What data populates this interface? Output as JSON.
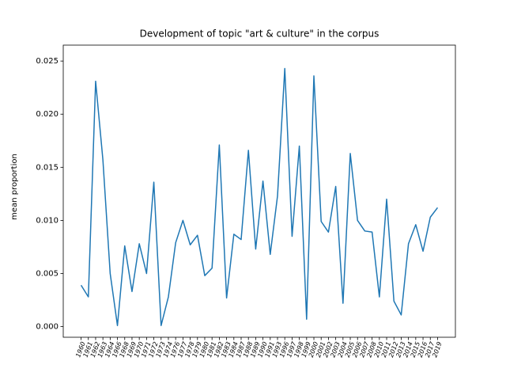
{
  "chart_data": {
    "type": "line",
    "title": "Development of topic \"art & culture\" in the corpus",
    "ylabel": "mean proportion",
    "categories": [
      "1960",
      "1961",
      "1962",
      "1963",
      "1964",
      "1966",
      "1968",
      "1969",
      "1970",
      "1971",
      "1972",
      "1973",
      "1974",
      "1976",
      "1977",
      "1978",
      "1979",
      "1980",
      "1981",
      "1982",
      "1983",
      "1984",
      "1987",
      "1988",
      "1989",
      "1990",
      "1991",
      "1993",
      "1996",
      "1997",
      "1998",
      "1999",
      "2000",
      "2001",
      "2002",
      "2003",
      "2004",
      "2005",
      "2006",
      "2007",
      "2008",
      "2010",
      "2011",
      "2012",
      "2013",
      "2014",
      "2015",
      "2016",
      "2017",
      "2019"
    ],
    "series": [
      {
        "name": "art & culture",
        "color": "#1f77b4",
        "values": [
          0.0039,
          0.0028,
          0.0231,
          0.0157,
          0.005,
          0.0001,
          0.0076,
          0.0033,
          0.0078,
          0.005,
          0.0136,
          0.0001,
          0.0028,
          0.0079,
          0.01,
          0.0077,
          0.0086,
          0.0048,
          0.0055,
          0.0171,
          0.0027,
          0.0087,
          0.0082,
          0.0166,
          0.0073,
          0.0137,
          0.0068,
          0.0123,
          0.0243,
          0.0085,
          0.017,
          0.0007,
          0.0236,
          0.0099,
          0.0089,
          0.0132,
          0.0022,
          0.0163,
          0.01,
          0.009,
          0.0089,
          0.0028,
          0.012,
          0.0024,
          0.0011,
          0.0078,
          0.0096,
          0.0071,
          0.0103,
          0.0112
        ]
      }
    ],
    "ylim": [
      -0.001,
      0.0265
    ],
    "yticks": [
      {
        "value": 0,
        "label": "0.000"
      },
      {
        "value": 0.005,
        "label": "0.005"
      },
      {
        "value": 0.01,
        "label": "0.010"
      },
      {
        "value": 0.015,
        "label": "0.015"
      },
      {
        "value": 0.02,
        "label": "0.020"
      },
      {
        "value": 0.025,
        "label": "0.025"
      }
    ]
  }
}
